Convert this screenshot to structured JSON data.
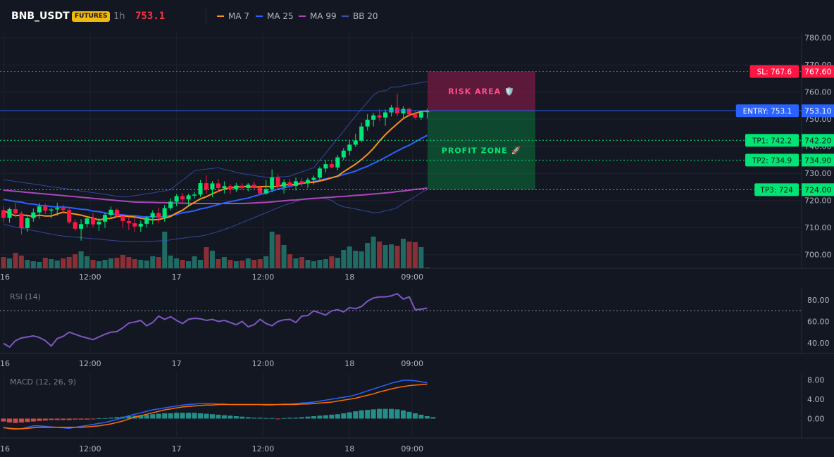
{
  "header": {
    "symbol": "BNB_USDT",
    "badge": "FUTURES",
    "timeframe": "1h",
    "last_price": "753.1",
    "legend": [
      {
        "label": "MA 7",
        "color": "#f7931a"
      },
      {
        "label": "MA 25",
        "color": "#2962ff"
      },
      {
        "label": "MA 99",
        "color": "#ab47bc"
      },
      {
        "label": "BB 20",
        "color": "#3f51b5"
      }
    ]
  },
  "colors": {
    "up": "#26a69a",
    "down": "#ef5350",
    "up_bright": "#00e676",
    "down_bright": "#ff1744",
    "volume_up": "#1f6b63",
    "volume_down": "#8a2f36"
  },
  "chart_data": [
    {
      "id": "price",
      "type": "candlestick",
      "ylim": [
        695,
        782
      ],
      "y_ticks": [
        "780.00",
        "770.00",
        "760.00",
        "750.00",
        "740.00",
        "730.00",
        "720.00",
        "710.00",
        "700.00"
      ],
      "x_tick_labels": [
        "16",
        "12:00",
        "17",
        "12:00",
        "18",
        "09:00"
      ],
      "ohlc": [
        [
          716.4,
          718.0,
          712.0,
          713.6
        ],
        [
          713.6,
          717.4,
          711.8,
          716.8
        ],
        [
          716.8,
          719.2,
          713.8,
          715.2
        ],
        [
          715.2,
          716.0,
          707.5,
          709.8
        ],
        [
          709.8,
          714.6,
          708.4,
          713.5
        ],
        [
          713.5,
          717.1,
          712.2,
          715.6
        ],
        [
          715.6,
          719.1,
          713.3,
          717.8
        ],
        [
          717.8,
          718.8,
          715.1,
          716.3
        ],
        [
          716.3,
          717.3,
          713.5,
          716.7
        ],
        [
          716.7,
          719.2,
          714.4,
          717.2
        ],
        [
          717.2,
          718.5,
          715.1,
          716.5
        ],
        [
          716.5,
          717.1,
          711.4,
          712.0
        ],
        [
          712.0,
          713.1,
          708.8,
          709.6
        ],
        [
          709.6,
          713.1,
          705.2,
          711.3
        ],
        [
          711.3,
          714.0,
          710.0,
          713.4
        ],
        [
          713.4,
          715.4,
          710.1,
          711.2
        ],
        [
          711.2,
          713.7,
          708.8,
          712.2
        ],
        [
          712.2,
          715.5,
          709.9,
          714.7
        ],
        [
          714.7,
          717.8,
          713.5,
          716.6
        ],
        [
          716.6,
          717.1,
          713.7,
          714.2
        ],
        [
          714.2,
          714.9,
          710.0,
          712.4
        ],
        [
          712.4,
          714.0,
          709.1,
          711.6
        ],
        [
          711.6,
          713.6,
          708.4,
          710.4
        ],
        [
          710.4,
          712.6,
          708.4,
          711.4
        ],
        [
          711.4,
          714.3,
          710.0,
          713.7
        ],
        [
          713.7,
          716.4,
          711.2,
          715.4
        ],
        [
          715.4,
          717.4,
          711.6,
          713.8
        ],
        [
          713.8,
          718.4,
          712.2,
          717.2
        ],
        [
          717.2,
          720.9,
          716.3,
          719.6
        ],
        [
          719.6,
          722.4,
          717.9,
          721.6
        ],
        [
          721.6,
          722.8,
          719.3,
          720.4
        ],
        [
          720.4,
          722.5,
          718.0,
          721.9
        ],
        [
          721.9,
          723.2,
          720.7,
          722.2
        ],
        [
          722.2,
          727.6,
          721.3,
          726.4
        ],
        [
          726.4,
          729.3,
          722.5,
          724.1
        ],
        [
          724.1,
          727.2,
          721.3,
          726.3
        ],
        [
          726.3,
          727.9,
          723.0,
          724.6
        ],
        [
          724.6,
          727.1,
          722.6,
          725.3
        ],
        [
          725.3,
          726.0,
          722.4,
          724.2
        ],
        [
          724.2,
          726.5,
          723.1,
          725.5
        ],
        [
          725.5,
          726.4,
          723.8,
          724.6
        ],
        [
          724.6,
          726.4,
          723.4,
          725.8
        ],
        [
          725.8,
          727.0,
          724.3,
          724.8
        ],
        [
          724.8,
          725.5,
          722.3,
          722.6
        ],
        [
          722.6,
          727.6,
          722.1,
          724.2
        ],
        [
          724.2,
          731.5,
          723.0,
          728.5
        ],
        [
          728.5,
          729.6,
          724.3,
          725.1
        ],
        [
          725.1,
          727.8,
          722.6,
          726.7
        ],
        [
          726.7,
          727.9,
          724.9,
          725.4
        ],
        [
          725.4,
          728.5,
          723.7,
          727.1
        ],
        [
          727.1,
          728.3,
          725.1,
          726.3
        ],
        [
          726.3,
          728.4,
          724.6,
          727.6
        ],
        [
          727.6,
          729.2,
          725.9,
          728.4
        ],
        [
          728.4,
          732.5,
          727.6,
          731.8
        ],
        [
          731.8,
          734.8,
          730.4,
          733.4
        ],
        [
          733.4,
          734.7,
          731.9,
          732.2
        ],
        [
          732.2,
          736.8,
          731.1,
          735.9
        ],
        [
          735.9,
          739.4,
          734.9,
          738.4
        ],
        [
          738.4,
          742.3,
          736.7,
          740.6
        ],
        [
          740.6,
          744.6,
          739.7,
          742.1
        ],
        [
          742.1,
          748.7,
          741.5,
          747.3
        ],
        [
          747.3,
          751.9,
          745.8,
          749.8
        ],
        [
          749.8,
          752.3,
          747.3,
          751.4
        ],
        [
          751.4,
          753.7,
          749.3,
          750.6
        ],
        [
          750.6,
          753.6,
          747.5,
          752.5
        ],
        [
          752.5,
          755.3,
          751.0,
          754.3
        ],
        [
          754.3,
          759.4,
          751.1,
          752.1
        ],
        [
          752.1,
          754.8,
          750.0,
          753.8
        ],
        [
          753.8,
          754.2,
          750.8,
          751.8
        ],
        [
          751.8,
          753.0,
          750.0,
          750.6
        ],
        [
          750.6,
          753.3,
          749.8,
          752.6
        ],
        [
          752.6,
          753.8,
          750.2,
          753.1
        ]
      ],
      "volume": [
        16,
        14,
        22,
        18,
        12,
        10,
        9,
        15,
        13,
        11,
        14,
        16,
        20,
        24,
        17,
        12,
        10,
        12,
        14,
        15,
        19,
        16,
        13,
        12,
        11,
        17,
        16,
        52,
        18,
        14,
        12,
        10,
        17,
        12,
        30,
        25,
        13,
        16,
        12,
        10,
        11,
        14,
        12,
        13,
        17,
        52,
        48,
        33,
        20,
        14,
        16,
        12,
        10,
        12,
        13,
        17,
        15,
        26,
        31,
        25,
        24,
        36,
        45,
        38,
        33,
        34,
        32,
        42,
        38,
        37,
        30,
        1
      ],
      "ma7": [
        716.4,
        715.1,
        714.4,
        714.6,
        714.5,
        714.1,
        714.6,
        714.3,
        714.3,
        715.0,
        715.7,
        715.3,
        715.0,
        714.6,
        714.0,
        713.5,
        712.8,
        713.3,
        713.4,
        714.1,
        714.3,
        714.1,
        713.9,
        713.5,
        713.1,
        712.9,
        713.0,
        713.5,
        714.1,
        715.4,
        716.4,
        718.0,
        719.3,
        720.6,
        721.4,
        722.5,
        723.4,
        724.3,
        724.6,
        725.0,
        725.1,
        725.2,
        724.9,
        725.1,
        725.2,
        725.1,
        725.2,
        725.8,
        725.9,
        725.9,
        726.4,
        726.6,
        726.7,
        727.2,
        727.7,
        728.4,
        729.0,
        730.6,
        732.0,
        733.4,
        735.1,
        737.0,
        739.2,
        741.9,
        744.3,
        746.4,
        748.3,
        750.2,
        751.5,
        752.1,
        752.9,
        753.1
      ],
      "ma25": [
        720.4,
        720.0,
        719.6,
        719.4,
        718.8,
        718.7,
        718.2,
        718.1,
        717.8,
        717.6,
        717.6,
        717.4,
        717.1,
        716.8,
        716.6,
        716.1,
        715.9,
        715.4,
        715.0,
        714.9,
        714.7,
        714.4,
        714.4,
        714.1,
        713.9,
        714.1,
        713.9,
        714.1,
        714.5,
        714.9,
        715.5,
        715.8,
        716.2,
        716.9,
        717.3,
        717.9,
        718.5,
        719.1,
        719.6,
        720.0,
        720.5,
        720.9,
        721.6,
        722.2,
        722.8,
        723.6,
        724.2,
        724.7,
        725.2,
        725.8,
        726.3,
        726.6,
        727.0,
        727.5,
        728.0,
        728.4,
        728.9,
        729.6,
        730.2,
        730.8,
        731.8,
        732.6,
        733.7,
        734.7,
        735.9,
        737.1,
        738.3,
        739.4,
        740.4,
        741.6,
        742.9,
        744.0
      ],
      "ma99": [
        723.8,
        723.6,
        723.4,
        723.2,
        723.0,
        722.8,
        722.6,
        722.4,
        722.2,
        722.0,
        721.8,
        721.6,
        721.4,
        721.2,
        721.0,
        720.8,
        720.6,
        720.4,
        720.2,
        720.0,
        719.8,
        719.6,
        719.4,
        719.4,
        719.3,
        719.3,
        719.2,
        719.2,
        719.1,
        719.1,
        719.0,
        719.0,
        718.9,
        718.9,
        718.9,
        718.9,
        718.9,
        718.9,
        718.9,
        718.9,
        718.9,
        719.0,
        719.1,
        719.2,
        719.3,
        719.5,
        719.7,
        719.9,
        720.1,
        720.2,
        720.4,
        720.6,
        720.7,
        720.9,
        721.1,
        721.2,
        721.4,
        721.5,
        721.7,
        721.9,
        722.0,
        722.2,
        722.4,
        722.6,
        722.8,
        723.0,
        723.3,
        723.5,
        723.8,
        724.1,
        724.3,
        724.6
      ],
      "bb_upper": [
        727.7,
        727.4,
        727.0,
        726.7,
        726.4,
        726.1,
        725.8,
        725.4,
        725.1,
        724.8,
        724.5,
        724.2,
        723.9,
        723.5,
        723.2,
        722.9,
        722.6,
        722.3,
        721.9,
        721.6,
        721.3,
        721.4,
        721.8,
        722.1,
        722.5,
        722.8,
        723.2,
        723.5,
        724.0,
        725.8,
        727.5,
        729.2,
        730.9,
        731.3,
        731.6,
        731.8,
        732.1,
        731.5,
        731.0,
        730.4,
        729.9,
        729.6,
        729.2,
        728.9,
        728.6,
        728.5,
        728.7,
        728.8,
        729.0,
        729.8,
        730.6,
        731.3,
        732.1,
        734.8,
        737.5,
        740.2,
        742.9,
        745.6,
        748.4,
        751.1,
        753.8,
        756.3,
        758.8,
        760.3,
        760.5,
        761.8,
        761.8,
        762.3,
        762.7,
        763.1,
        763.5,
        763.9
      ],
      "bb_lower": [
        711.3,
        710.7,
        710.2,
        709.8,
        709.4,
        708.9,
        708.5,
        708.0,
        707.6,
        707.2,
        706.9,
        706.7,
        706.5,
        706.3,
        706.1,
        705.9,
        705.8,
        705.5,
        705.3,
        705.1,
        705.0,
        704.9,
        704.8,
        704.9,
        704.9,
        705.0,
        705.1,
        705.2,
        705.5,
        705.8,
        706.1,
        706.4,
        706.7,
        706.9,
        707.3,
        707.9,
        708.6,
        709.3,
        710.1,
        711.0,
        711.9,
        712.8,
        713.7,
        714.6,
        715.5,
        716.4,
        717.3,
        718.2,
        718.9,
        719.6,
        720.4,
        720.8,
        721.0,
        720.9,
        720.7,
        720.0,
        718.5,
        717.7,
        717.3,
        716.9,
        716.4,
        716.0,
        715.5,
        715.6,
        716.2,
        716.6,
        717.4,
        719.0,
        720.2,
        721.5,
        722.9,
        724.0
      ],
      "levels": [
        {
          "label": "SL: 767.6",
          "value": 767.6,
          "axis_label": "767.60",
          "color": "#ff1744",
          "style": "dotted"
        },
        {
          "label": "ENTRY: 753.1",
          "value": 753.1,
          "axis_label": "753.10",
          "color": "#2962ff",
          "style": "solid"
        },
        {
          "label": "TP1: 742.2",
          "value": 742.2,
          "axis_label": "742.20",
          "color": "#00e676",
          "style": "dotted"
        },
        {
          "label": "TP2: 734.9",
          "value": 734.9,
          "axis_label": "734.90",
          "color": "#00e676",
          "style": "dotted"
        },
        {
          "label": "TP3: 724",
          "value": 724.0,
          "axis_label": "724.00",
          "color": "#00e676",
          "style": "dotted"
        }
      ],
      "zones": {
        "risk_label": "RISK AREA 🛡️",
        "profit_label": "PROFIT ZONE 🚀"
      }
    },
    {
      "id": "rsi",
      "type": "line",
      "title": "RSI (14)",
      "ylim": [
        30,
        92
      ],
      "y_ticks": [
        "80.00",
        "60.00",
        "40.00"
      ],
      "reference_line": 70,
      "x_tick_labels": [
        "16",
        "12:00",
        "17",
        "12:00",
        "18",
        "09:00"
      ],
      "values": [
        39.5,
        36,
        42,
        44.5,
        45.5,
        46.5,
        45,
        42,
        37,
        44,
        46,
        50,
        48,
        46,
        44.5,
        43,
        45.5,
        48,
        50,
        50.5,
        54,
        58.5,
        59.5,
        61,
        56,
        59,
        65,
        62,
        64.5,
        61,
        58,
        62,
        63,
        62.5,
        61,
        62,
        60,
        61,
        59,
        57,
        60,
        55,
        57,
        62,
        58,
        56,
        60,
        61.5,
        62,
        59,
        65,
        65.5,
        70,
        68,
        66,
        70,
        71,
        69,
        73,
        72,
        74,
        79,
        82,
        83,
        83,
        84,
        86,
        81,
        83,
        71,
        71.5,
        72.5
      ]
    },
    {
      "id": "macd",
      "type": "line",
      "title": "MACD (12, 26, 9)",
      "ylim": [
        -4,
        9.5
      ],
      "y_ticks": [
        "8.00",
        "4.00",
        "0.00"
      ],
      "x_tick_labels": [
        "16",
        "12:00",
        "17",
        "12:00",
        "18",
        "09:00"
      ],
      "macd": [
        -1.8,
        -2.1,
        -2.2,
        -2.1,
        -1.8,
        -1.5,
        -1.5,
        -1.6,
        -1.7,
        -1.8,
        -1.9,
        -2.0,
        -1.8,
        -1.6,
        -1.4,
        -1.2,
        -1.0,
        -0.8,
        -0.5,
        -0.2,
        0.2,
        0.6,
        0.9,
        1.2,
        1.5,
        1.8,
        2.0,
        2.2,
        2.4,
        2.6,
        2.8,
        2.9,
        3.0,
        3.1,
        3.1,
        3.1,
        3.0,
        3.0,
        2.9,
        2.9,
        2.9,
        2.9,
        2.9,
        2.9,
        2.8,
        2.8,
        2.9,
        3.0,
        3.0,
        3.1,
        3.2,
        3.3,
        3.4,
        3.6,
        3.8,
        4.0,
        4.2,
        4.4,
        4.6,
        4.9,
        5.3,
        5.7,
        6.1,
        6.5,
        6.9,
        7.3,
        7.6,
        7.9,
        7.9,
        7.8,
        7.6,
        7.4
      ],
      "signal": [
        -1.9,
        -2.0,
        -2.1,
        -2.1,
        -2.0,
        -1.9,
        -1.8,
        -1.8,
        -1.8,
        -1.8,
        -1.8,
        -1.8,
        -1.8,
        -1.8,
        -1.7,
        -1.6,
        -1.5,
        -1.3,
        -1.1,
        -0.8,
        -0.5,
        -0.1,
        0.3,
        0.6,
        0.9,
        1.2,
        1.5,
        1.8,
        2.0,
        2.2,
        2.4,
        2.5,
        2.6,
        2.7,
        2.8,
        2.8,
        2.9,
        2.9,
        2.9,
        2.9,
        2.9,
        2.9,
        2.9,
        2.9,
        2.9,
        2.9,
        2.9,
        2.9,
        2.9,
        2.9,
        3.0,
        3.0,
        3.1,
        3.2,
        3.3,
        3.4,
        3.6,
        3.8,
        4.0,
        4.2,
        4.5,
        4.8,
        5.1,
        5.5,
        5.8,
        6.1,
        6.4,
        6.6,
        6.8,
        6.9,
        7.0,
        7.1
      ],
      "histogram": [
        -0.6,
        -0.8,
        -0.9,
        -0.8,
        -0.7,
        -0.6,
        -0.5,
        -0.4,
        -0.3,
        -0.3,
        -0.3,
        -0.3,
        -0.2,
        -0.2,
        -0.2,
        -0.1,
        0.1,
        0.1,
        0.2,
        0.3,
        0.4,
        0.5,
        0.6,
        0.7,
        0.8,
        0.9,
        1.0,
        1.1,
        1.1,
        1.2,
        1.2,
        1.2,
        1.2,
        1.1,
        1.0,
        0.9,
        0.8,
        0.7,
        0.6,
        0.5,
        0.4,
        0.3,
        0.2,
        0.2,
        0.1,
        0.1,
        -0.1,
        0.1,
        0.2,
        0.2,
        0.3,
        0.4,
        0.5,
        0.6,
        0.7,
        0.8,
        0.9,
        1.1,
        1.3,
        1.5,
        1.7,
        1.8,
        1.9,
        2.0,
        2.0,
        2.0,
        1.9,
        1.7,
        1.4,
        1.1,
        0.8,
        0.5,
        0.3
      ]
    }
  ]
}
